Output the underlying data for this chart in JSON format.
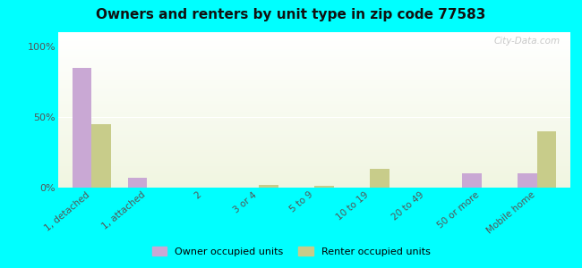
{
  "title": "Owners and renters by unit type in zip code 77583",
  "categories": [
    "1, detached",
    "1, attached",
    "2",
    "3 or 4",
    "5 to 9",
    "10 to 19",
    "20 to 49",
    "50 or more",
    "Mobile home"
  ],
  "owner_values": [
    85,
    7,
    0,
    0,
    0,
    0,
    0,
    10,
    10
  ],
  "renter_values": [
    45,
    0,
    0,
    2,
    1,
    13,
    0,
    0,
    40
  ],
  "owner_color": "#c9a8d4",
  "renter_color": "#c8cc8a",
  "gradient_top_color": "#f0f5e0",
  "gradient_bottom_color": "#ffffff",
  "outer_bg": "#00ffff",
  "yticks": [
    0,
    50,
    100
  ],
  "ytick_labels": [
    "0%",
    "50%",
    "100%"
  ],
  "ylim": [
    0,
    110
  ],
  "bar_width": 0.35,
  "watermark": "City-Data.com",
  "legend_owner": "Owner occupied units",
  "legend_renter": "Renter occupied units"
}
